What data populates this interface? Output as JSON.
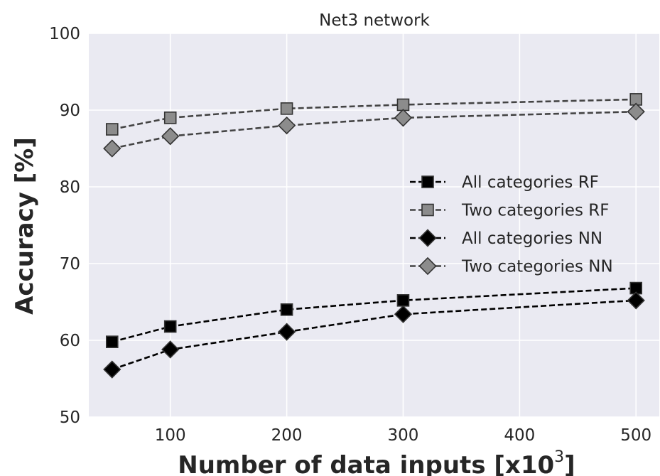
{
  "chart_data": {
    "type": "line",
    "title": "Net3 network",
    "xlabel": "Number of data inputs [x10",
    "xlabel_sup": "3",
    "xlabel_tail": "]",
    "ylabel": "Accuracy [%]",
    "xlim": [
      30,
      520
    ],
    "ylim": [
      50,
      100
    ],
    "x": [
      50,
      100,
      200,
      300,
      500
    ],
    "xticks": [
      100,
      200,
      300,
      400,
      500
    ],
    "yticks": [
      50,
      60,
      70,
      80,
      90,
      100
    ],
    "grid": true,
    "legend_position": "center-right",
    "series": [
      {
        "name": "All categories RF",
        "values": [
          59.8,
          61.8,
          64.0,
          65.2,
          66.8
        ],
        "marker": "square",
        "color": "#000000",
        "line_color": "#000000"
      },
      {
        "name": "Two categories RF",
        "values": [
          87.5,
          89.0,
          90.2,
          90.7,
          91.4
        ],
        "marker": "square",
        "color": "#8c8c8c",
        "line_color": "#444444"
      },
      {
        "name": "All categories NN",
        "values": [
          56.2,
          58.8,
          61.1,
          63.4,
          65.2
        ],
        "marker": "diamond",
        "color": "#000000",
        "line_color": "#000000"
      },
      {
        "name": "Two categories NN",
        "values": [
          85.0,
          86.6,
          88.0,
          89.0,
          89.8
        ],
        "marker": "diamond",
        "color": "#8c8c8c",
        "line_color": "#444444"
      }
    ],
    "plot_background": "#eaeaf2",
    "grid_color": "#ffffff"
  }
}
